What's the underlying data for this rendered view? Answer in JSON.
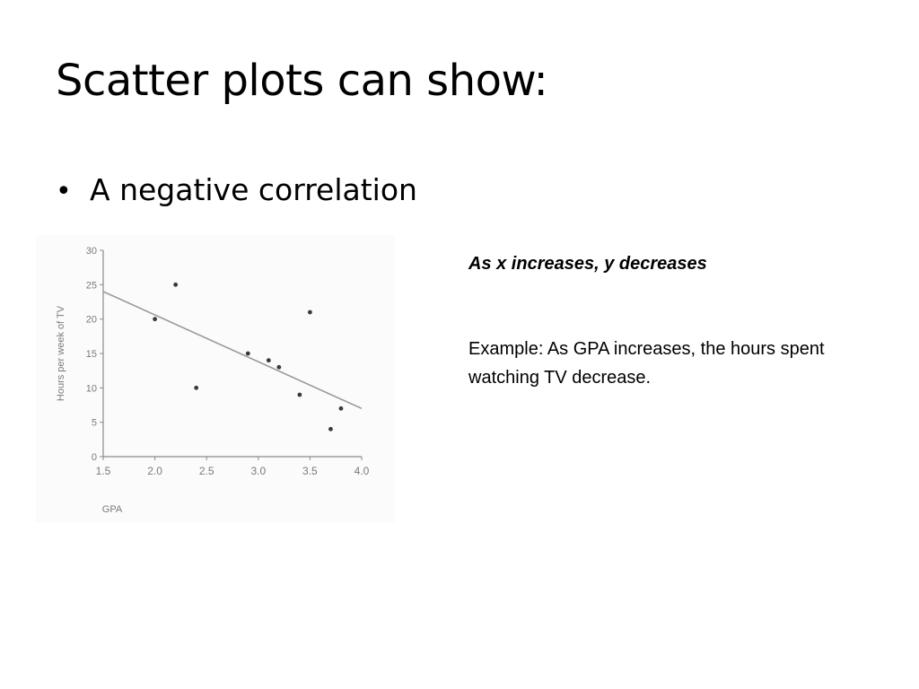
{
  "slide": {
    "title": "Scatter plots can show:",
    "bullets": [
      "A negative correlation"
    ],
    "note_heading": "As x increases, y decreases",
    "note_text": "Example:  As GPA increases, the hours spent watching TV decrease."
  },
  "colors": {
    "axis": "#8a8a8a",
    "tick_text": "#7a7a7a",
    "point": "#3a3a3a",
    "trend": "#9a9a9a",
    "background": "#fbfbfb"
  },
  "chart_data": {
    "type": "scatter",
    "xlabel": "GPA",
    "ylabel": "Hours per week of TV",
    "xlim": [
      1.5,
      4.0
    ],
    "ylim": [
      0,
      30
    ],
    "xticks": [
      "1.5",
      "2.0",
      "2.5",
      "3.0",
      "3.5",
      "4.0"
    ],
    "yticks": [
      "0",
      "5",
      "10",
      "15",
      "20",
      "25",
      "30"
    ],
    "grid": false,
    "points": [
      {
        "x": 2.0,
        "y": 20
      },
      {
        "x": 2.2,
        "y": 25
      },
      {
        "x": 2.4,
        "y": 10
      },
      {
        "x": 2.9,
        "y": 15
      },
      {
        "x": 3.1,
        "y": 14
      },
      {
        "x": 3.2,
        "y": 13
      },
      {
        "x": 3.4,
        "y": 9
      },
      {
        "x": 3.5,
        "y": 21
      },
      {
        "x": 3.7,
        "y": 4
      },
      {
        "x": 3.8,
        "y": 7
      }
    ],
    "trendline": {
      "x": [
        1.5,
        4.0
      ],
      "y": [
        24,
        7
      ]
    }
  }
}
